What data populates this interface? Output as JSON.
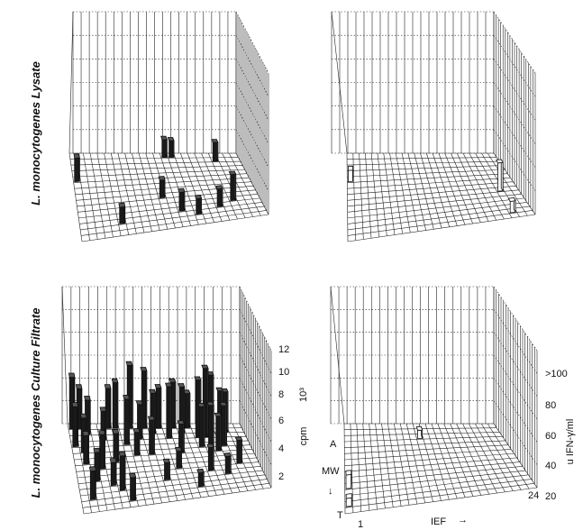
{
  "figure": {
    "row_labels": [
      "L. monocytogenes Lysate",
      "L. monocytogenes  Culture Filtrate"
    ],
    "cpm_axis": {
      "ticks": [
        "2",
        "4",
        "6",
        "8",
        "10",
        "12"
      ],
      "label": "cpm",
      "unit": "10³"
    },
    "ifn_axis": {
      "ticks": [
        "20",
        "40",
        "60",
        "80",
        ">100"
      ],
      "label": "u IFN-γ/ml"
    },
    "mw_axis": {
      "label": "MW",
      "arrow": "↓",
      "top": "A",
      "bottom": "T"
    },
    "ief_axis": {
      "label": "IEF",
      "arrow": "→",
      "start": "1",
      "end": "24"
    }
  },
  "chart_data": [
    {
      "type": "bar3d",
      "panel": "Lysate — proliferation (cpm)",
      "x_label": "IEF",
      "x_range": [
        1,
        24
      ],
      "y_label": "MW",
      "y_range": [
        "A",
        "T"
      ],
      "z_label": "cpm 10³",
      "z_range": [
        0,
        12
      ],
      "points": [
        {
          "ief": 1,
          "mw": 5,
          "cpm": 2.0
        },
        {
          "ief": 14,
          "mw": 1,
          "cpm": 1.5
        },
        {
          "ief": 15,
          "mw": 1,
          "cpm": 1.4
        },
        {
          "ief": 21,
          "mw": 2,
          "cpm": 1.6
        },
        {
          "ief": 12,
          "mw": 9,
          "cpm": 1.5
        },
        {
          "ief": 6,
          "mw": 13,
          "cpm": 1.4
        },
        {
          "ief": 14,
          "mw": 12,
          "cpm": 1.6
        },
        {
          "ief": 16,
          "mw": 13,
          "cpm": 1.3
        },
        {
          "ief": 19,
          "mw": 12,
          "cpm": 1.5
        },
        {
          "ief": 21,
          "mw": 11,
          "cpm": 2.2
        }
      ]
    },
    {
      "type": "bar3d",
      "panel": "Lysate — IFN-γ",
      "x_label": "IEF",
      "x_range": [
        1,
        24
      ],
      "y_label": "MW",
      "y_range": [
        "A",
        "T"
      ],
      "z_label": "u IFN-γ/ml",
      "z_range": [
        0,
        100
      ],
      "points": [
        {
          "ief": 1,
          "mw": 5,
          "ifn": 8
        },
        {
          "ief": 22,
          "mw": 9,
          "ifn": 20
        },
        {
          "ief": 22,
          "mw": 14,
          "ifn": 8
        }
      ]
    },
    {
      "type": "bar3d",
      "panel": "Culture Filtrate — proliferation (cpm)",
      "x_label": "IEF",
      "x_range": [
        1,
        24
      ],
      "y_label": "MW",
      "y_range": [
        "A",
        "T"
      ],
      "z_label": "cpm 10³",
      "z_range": [
        0,
        12
      ],
      "points": [
        {
          "ief": 1,
          "mw": 1,
          "cpm": 4.5
        },
        {
          "ief": 2,
          "mw": 1,
          "cpm": 3.5
        },
        {
          "ief": 3,
          "mw": 2,
          "cpm": 3.0
        },
        {
          "ief": 6,
          "mw": 1,
          "cpm": 3.5
        },
        {
          "ief": 7,
          "mw": 1,
          "cpm": 4.0
        },
        {
          "ief": 9,
          "mw": 1,
          "cpm": 5.5
        },
        {
          "ief": 11,
          "mw": 1,
          "cpm": 5.0
        },
        {
          "ief": 13,
          "mw": 1,
          "cpm": 3.5
        },
        {
          "ief": 15,
          "mw": 1,
          "cpm": 4.0
        },
        {
          "ief": 17,
          "mw": 1,
          "cpm": 3.0
        },
        {
          "ief": 1,
          "mw": 4,
          "cpm": 3.5
        },
        {
          "ief": 2,
          "mw": 5,
          "cpm": 3.0
        },
        {
          "ief": 5,
          "mw": 3,
          "cpm": 2.5
        },
        {
          "ief": 8,
          "mw": 4,
          "cpm": 4.0
        },
        {
          "ief": 10,
          "mw": 3,
          "cpm": 3.0
        },
        {
          "ief": 12,
          "mw": 2,
          "cpm": 3.5
        },
        {
          "ief": 14,
          "mw": 3,
          "cpm": 4.5
        },
        {
          "ief": 16,
          "mw": 2,
          "cpm": 4.0
        },
        {
          "ief": 18,
          "mw": 3,
          "cpm": 5.0
        },
        {
          "ief": 19,
          "mw": 3,
          "cpm": 6.0
        },
        {
          "ief": 20,
          "mw": 2,
          "cpm": 5.0
        },
        {
          "ief": 21,
          "mw": 3,
          "cpm": 4.0
        },
        {
          "ief": 22,
          "mw": 2,
          "cpm": 3.5
        },
        {
          "ief": 2,
          "mw": 7,
          "cpm": 2.5
        },
        {
          "ief": 4,
          "mw": 8,
          "cpm": 3.0
        },
        {
          "ief": 6,
          "mw": 7,
          "cpm": 2.5
        },
        {
          "ief": 9,
          "mw": 6,
          "cpm": 2.0
        },
        {
          "ief": 11,
          "mw": 6,
          "cpm": 3.0
        },
        {
          "ief": 15,
          "mw": 6,
          "cpm": 2.5
        },
        {
          "ief": 18,
          "mw": 5,
          "cpm": 3.5
        },
        {
          "ief": 19,
          "mw": 6,
          "cpm": 4.0
        },
        {
          "ief": 20,
          "mw": 6,
          "cpm": 3.0
        },
        {
          "ief": 21,
          "mw": 5,
          "cpm": 3.5
        },
        {
          "ief": 3,
          "mw": 10,
          "cpm": 2.5
        },
        {
          "ief": 5,
          "mw": 11,
          "cpm": 2.0
        },
        {
          "ief": 6,
          "mw": 12,
          "cpm": 3.0
        },
        {
          "ief": 2,
          "mw": 13,
          "cpm": 2.5
        },
        {
          "ief": 7,
          "mw": 14,
          "cpm": 2.0
        },
        {
          "ief": 12,
          "mw": 11,
          "cpm": 1.5
        },
        {
          "ief": 14,
          "mw": 9,
          "cpm": 1.5
        },
        {
          "ief": 16,
          "mw": 13,
          "cpm": 1.2
        },
        {
          "ief": 18,
          "mw": 10,
          "cpm": 2.0
        },
        {
          "ief": 20,
          "mw": 11,
          "cpm": 1.5
        },
        {
          "ief": 22,
          "mw": 9,
          "cpm": 2.0
        }
      ]
    },
    {
      "type": "bar3d",
      "panel": "Culture Filtrate — IFN-γ",
      "x_label": "IEF",
      "x_range": [
        1,
        24
      ],
      "y_label": "MW",
      "y_range": [
        "A",
        "T"
      ],
      "z_label": "u IFN-γ/ml",
      "z_range": [
        0,
        100
      ],
      "points": [
        {
          "ief": 12,
          "mw": 3,
          "ifn": 6
        },
        {
          "ief": 1,
          "mw": 11,
          "ifn": 10
        },
        {
          "ief": 1,
          "mw": 14,
          "ifn": 6
        }
      ]
    }
  ]
}
